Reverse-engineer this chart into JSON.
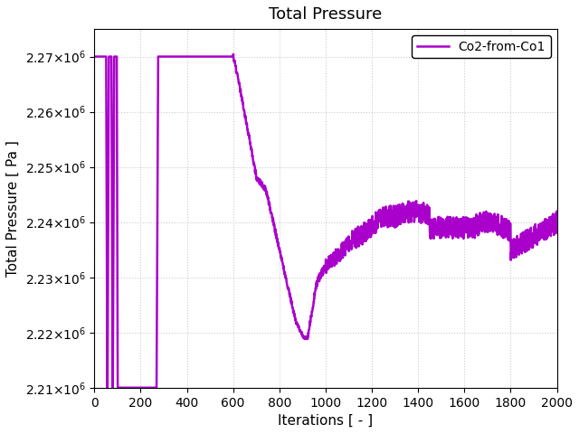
{
  "title": "Total Pressure",
  "xlabel": "Iterations [ - ]",
  "ylabel": "Total Pressure [ Pa ]",
  "line_color": "#AA00CC",
  "line_label": "Co2-from-Co1",
  "line_width": 1.8,
  "xlim": [
    0,
    2000
  ],
  "ylim": [
    2210000.0,
    2275000.0
  ],
  "xticks": [
    0,
    200,
    400,
    600,
    800,
    1000,
    1200,
    1400,
    1600,
    1800,
    2000
  ],
  "yticks": [
    2210000.0,
    2220000.0,
    2230000.0,
    2240000.0,
    2250000.0,
    2260000.0,
    2270000.0
  ],
  "grid": true,
  "background_color": "#ffffff",
  "seed": 12345
}
